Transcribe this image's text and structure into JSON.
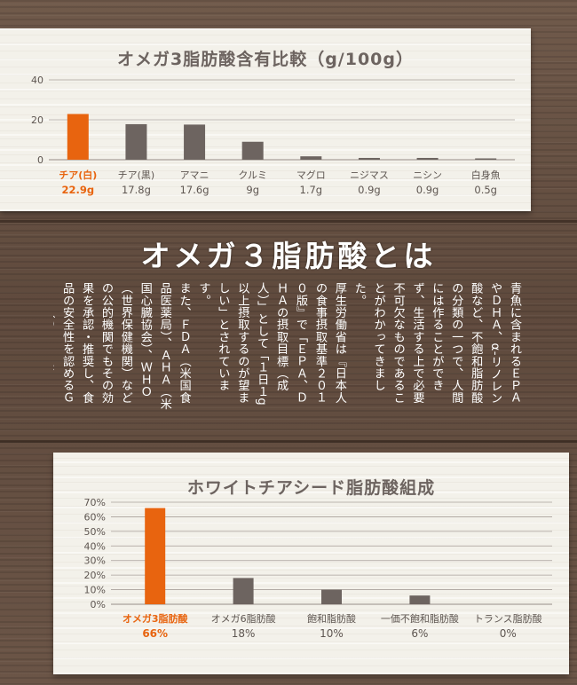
{
  "chart_data": [
    {
      "type": "bar",
      "title": "オメガ3脂肪酸含有比較（g/100g）",
      "categories": [
        "チア(白)",
        "チア(黒)",
        "アマニ",
        "クルミ",
        "マグロ",
        "ニジマス",
        "ニシン",
        "白身魚"
      ],
      "values": [
        22.9,
        17.8,
        17.6,
        9,
        1.7,
        0.9,
        0.9,
        0.5
      ],
      "value_labels": [
        "22.9g",
        "17.8g",
        "17.6g",
        "9g",
        "1.7g",
        "0.9g",
        "0.9g",
        "0.5g"
      ],
      "yticks": [
        "40",
        "20",
        "0"
      ],
      "ylim": [
        0,
        40
      ],
      "grid": true,
      "highlight_index": 0
    },
    {
      "type": "bar",
      "title": "ホワイトチアシード脂肪酸組成",
      "categories": [
        "オメガ3脂肪酸",
        "オメガ6脂肪酸",
        "飽和脂肪酸",
        "一価不飽和脂肪酸",
        "トランス脂肪酸"
      ],
      "values": [
        66,
        18,
        10,
        6,
        0
      ],
      "value_labels": [
        "66%",
        "18%",
        "10%",
        "6%",
        "0%"
      ],
      "yticks": [
        "70%",
        "60%",
        "50%",
        "40%",
        "30%",
        "20%",
        "10%",
        "0%"
      ],
      "ylim": [
        0,
        70
      ],
      "grid": true,
      "highlight_index": 0
    }
  ],
  "heading": "オメガ３脂肪酸とは",
  "body_paragraphs": [
    "青魚に含まれるＥＰＡやＤＨＡ、α‐リノレン酸など、不飽和脂肪酸の分類の一つで、人間には作ることができず、生活する上で必要不可欠なものであることがわかってきました。",
    "厚生労働省は『日本人の食事摂取基準２０１０版』で「ＥＰＡ、ＤＨＡの摂取目標（成人）」として「１日１g以上摂取するのが望ましい」とされています。",
    "また、ＦＤＡ（米国食品医薬局）、ＡＨＡ（米国心臓協会）、ＷＨＯ（世界保健機関）などの公的機関でもその効果を承認・推奨し、食品の安全性を認めるＧＲＳ（Generally Recognized As Safe）にも収載されています。"
  ],
  "colors": {
    "highlight": "#e8640f",
    "bar": "#6d6460",
    "axis_text": "#5e5651",
    "grid": "#a8a09a",
    "panel": "#f3f1ea",
    "wood": "#6a5446"
  }
}
